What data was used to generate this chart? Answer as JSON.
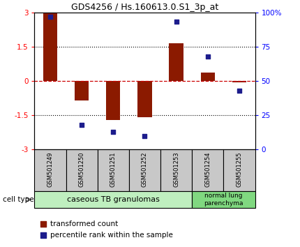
{
  "title": "GDS4256 / Hs.160613.0.S1_3p_at",
  "samples": [
    "GSM501249",
    "GSM501250",
    "GSM501251",
    "GSM501252",
    "GSM501253",
    "GSM501254",
    "GSM501255"
  ],
  "bar_values": [
    3.0,
    -0.85,
    -1.7,
    -1.58,
    1.65,
    0.35,
    -0.05
  ],
  "dot_values": [
    97,
    18,
    13,
    10,
    93,
    68,
    43
  ],
  "ylim_left": [
    -3,
    3
  ],
  "ylim_right": [
    0,
    100
  ],
  "yticks_left": [
    -3,
    -1.5,
    0,
    1.5,
    3
  ],
  "ytick_labels_left": [
    "-3",
    "-1.5",
    "0",
    "1.5",
    "3"
  ],
  "yticks_right": [
    0,
    25,
    50,
    75,
    100
  ],
  "ytick_labels_right": [
    "0",
    "25",
    "50",
    "75",
    "100%"
  ],
  "bar_color": "#8B1A00",
  "dot_color": "#1C1C8C",
  "hline_color": "#CC0000",
  "group1_label": "caseous TB granulomas",
  "group2_label": "normal lung\nparenchyma",
  "group1_indices": [
    0,
    1,
    2,
    3,
    4
  ],
  "group2_indices": [
    5,
    6
  ],
  "group1_color": "#BFEFBF",
  "group2_color": "#80D880",
  "cell_type_label": "cell type",
  "legend1_label": "transformed count",
  "legend2_label": "percentile rank within the sample",
  "sample_box_color": "#C8C8C8",
  "background_color": "#FFFFFF",
  "bar_width": 0.45
}
